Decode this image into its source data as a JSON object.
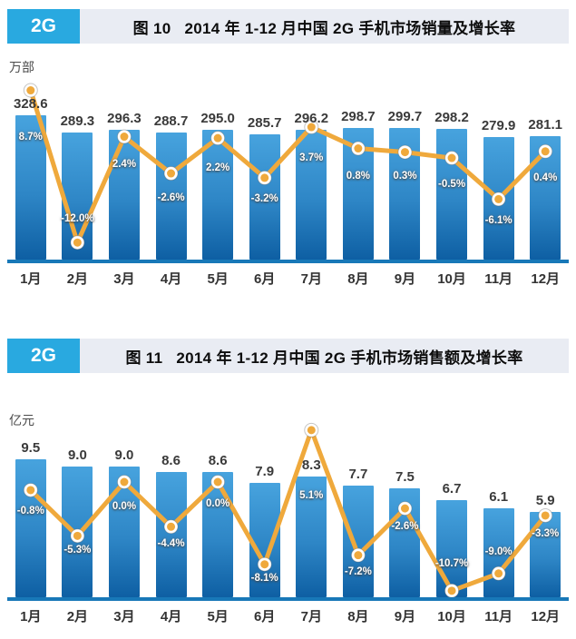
{
  "colors": {
    "badge_bg": "#29A9E0",
    "header_bg": "#E9ECF3",
    "bar_top": "#47A3DE",
    "bar_bottom": "#0E5FA3",
    "growth_line": "#EFA93C",
    "marker_ring": "#FFFFFF",
    "x_axis": "#1878B8",
    "pct_text": "#FFFFFF",
    "value_text": "#3A3A3A"
  },
  "chart_data": [
    {
      "type": "bar",
      "badge": "2G",
      "title": "图 10   2014 年 1-12 月中国 2G 手机市场销量及增长率",
      "unit_label": "万部",
      "categories": [
        "1月",
        "2月",
        "3月",
        "4月",
        "5月",
        "6月",
        "7月",
        "8月",
        "9月",
        "10月",
        "11月",
        "12月"
      ],
      "series": [
        {
          "name": "销量",
          "type": "bar",
          "values": [
            328.6,
            289.3,
            296.3,
            288.7,
            295.0,
            285.7,
            296.2,
            298.7,
            299.7,
            298.2,
            279.9,
            281.1
          ],
          "labels": [
            "328.6",
            "289.3",
            "296.3",
            "288.7",
            "295.0",
            "285.7",
            "296.2",
            "298.7",
            "299.7",
            "298.2",
            "279.9",
            "281.1"
          ]
        },
        {
          "name": "增长率",
          "type": "line",
          "values": [
            8.7,
            -12.0,
            2.4,
            -2.6,
            2.2,
            -3.2,
            3.7,
            0.8,
            0.3,
            -0.5,
            -6.1,
            0.4
          ],
          "labels": [
            "8.7%",
            "-12.0%",
            "2.4%",
            "-2.6%",
            "2.2%",
            "-3.2%",
            "3.7%",
            "0.8%",
            "0.3%",
            "-0.5%",
            "-6.1%",
            "0.4%"
          ]
        }
      ],
      "xlabel": "",
      "ylabel": "万部",
      "ylim": [
        0,
        340
      ],
      "y2lim_pct": [
        -14,
        10
      ],
      "grid": false,
      "legend": "none",
      "layout_hints": {
        "pct_label_dy": [
          45,
          -32,
          24,
          21,
          27,
          17,
          28,
          24,
          20,
          23,
          18,
          23
        ]
      }
    },
    {
      "type": "bar",
      "badge": "2G",
      "title": "图 11   2014 年 1-12 月中国 2G 手机市场销售额及增长率",
      "unit_label": "亿元",
      "categories": [
        "1月",
        "2月",
        "3月",
        "4月",
        "5月",
        "6月",
        "7月",
        "8月",
        "9月",
        "10月",
        "11月",
        "12月"
      ],
      "series": [
        {
          "name": "销售额",
          "type": "bar",
          "values": [
            9.5,
            9.0,
            9.0,
            8.6,
            8.6,
            7.9,
            8.3,
            7.7,
            7.5,
            6.7,
            6.1,
            5.9
          ],
          "labels": [
            "9.5",
            "9.0",
            "9.0",
            "8.6",
            "8.6",
            "7.9",
            "8.3",
            "7.7",
            "7.5",
            "6.7",
            "6.1",
            "5.9"
          ]
        },
        {
          "name": "增长率",
          "type": "line",
          "values": [
            -0.8,
            -5.3,
            0.0,
            -4.4,
            0.0,
            -8.1,
            5.1,
            -7.2,
            -2.6,
            -10.7,
            -9.0,
            -3.3
          ],
          "labels": [
            "-0.8%",
            "-5.3%",
            "0.0%",
            "-4.4%",
            "0.0%",
            "-8.1%",
            "5.1%",
            "-7.2%",
            "-2.6%",
            "-10.7%",
            "-9.0%",
            "-3.3%"
          ]
        }
      ],
      "xlabel": "",
      "ylabel": "亿元",
      "ylim": [
        0,
        10
      ],
      "y2lim_pct": [
        -12,
        6
      ],
      "grid": false,
      "legend": "none",
      "layout_hints": {
        "pct_label_dy": [
          17,
          10,
          21,
          13,
          18,
          9,
          66,
          12,
          14,
          -36,
          -30,
          14
        ]
      }
    }
  ]
}
